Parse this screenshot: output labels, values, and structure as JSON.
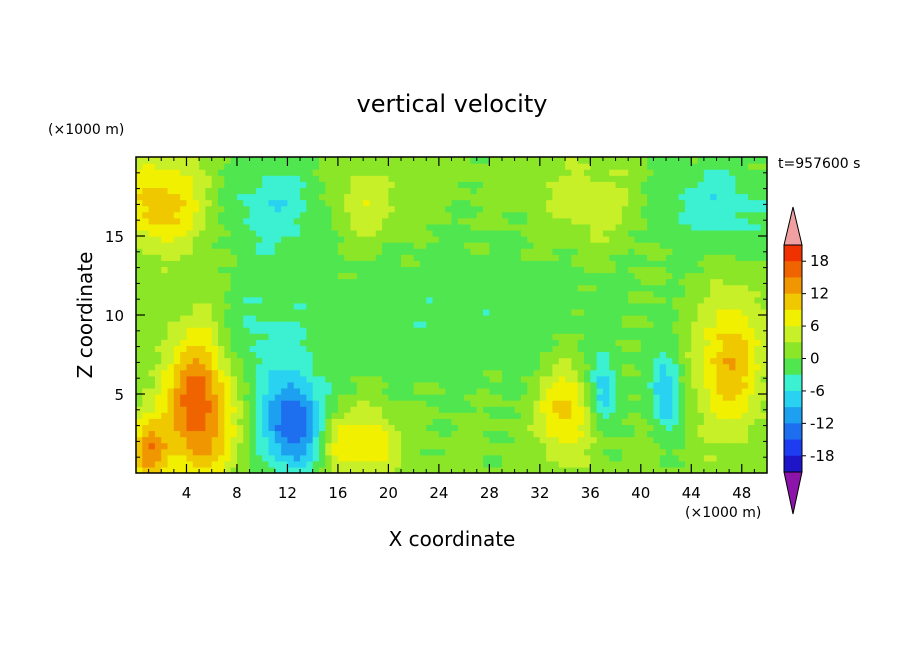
{
  "chart_data": {
    "type": "heatmap",
    "title": "vertical velocity",
    "xlabel": "X coordinate",
    "ylabel": "Z coordinate",
    "x_unit": "(×1000 m)",
    "y_unit": "(×1000 m)",
    "time_label": "t=957600 s",
    "xlim": [
      0,
      50
    ],
    "ylim": [
      0,
      20
    ],
    "x_ticks": [
      "4",
      "8",
      "12",
      "16",
      "20",
      "24",
      "28",
      "32",
      "36",
      "40",
      "44",
      "48"
    ],
    "y_ticks": [
      "5",
      "10",
      "15"
    ],
    "colorbar": {
      "labels": [
        "18",
        "12",
        "6",
        "0",
        "-6",
        "-12",
        "-18"
      ],
      "levels": [
        -21,
        -18,
        -15,
        -12,
        -9,
        -6,
        -3,
        0,
        3,
        6,
        9,
        12,
        15,
        18,
        21
      ],
      "colors": [
        "#2a0a8a",
        "#1e14c8",
        "#1e3cf0",
        "#1e6ef0",
        "#1ea0f0",
        "#28d2f0",
        "#3cf0d2",
        "#50e650",
        "#8ce628",
        "#c8f028",
        "#f0f000",
        "#f0c800",
        "#f09600",
        "#f06400",
        "#f03200",
        "#dc0000"
      ],
      "over_color": "#f0a0a0",
      "under_color": "#8c14aa"
    },
    "features": [
      {
        "x": 5,
        "z": 4.5,
        "value": 17,
        "sx": 2.0,
        "sz": 3.5
      },
      {
        "x": 1,
        "z": 1.5,
        "value": 12,
        "sx": 1.0,
        "sz": 1.5
      },
      {
        "x": 12.5,
        "z": 3,
        "value": -15,
        "sx": 1.8,
        "sz": 2.2
      },
      {
        "x": 16,
        "z": 2,
        "value": 8,
        "sx": 1.2,
        "sz": 1.5
      },
      {
        "x": 19,
        "z": 2,
        "value": 8,
        "sx": 1.2,
        "sz": 1.5
      },
      {
        "x": 34,
        "z": 4,
        "value": 10,
        "sx": 1.5,
        "sz": 2.0
      },
      {
        "x": 37,
        "z": 5,
        "value": -9,
        "sx": 0.8,
        "sz": 1.5
      },
      {
        "x": 42,
        "z": 5,
        "value": -10,
        "sx": 0.8,
        "sz": 1.8
      },
      {
        "x": 47,
        "z": 7,
        "value": 11,
        "sx": 1.8,
        "sz": 3.0
      },
      {
        "x": 2,
        "z": 17,
        "value": 10,
        "sx": 2.5,
        "sz": 2.0
      },
      {
        "x": 11,
        "z": 17,
        "value": -6,
        "sx": 3.0,
        "sz": 2.0
      },
      {
        "x": 18,
        "z": 17,
        "value": 5,
        "sx": 2.0,
        "sz": 1.8
      },
      {
        "x": 36,
        "z": 17,
        "value": 5,
        "sx": 2.5,
        "sz": 1.8
      },
      {
        "x": 46,
        "z": 17,
        "value": -6,
        "sx": 3.5,
        "sz": 2.0
      },
      {
        "x": 25,
        "z": 10,
        "value": -3,
        "sx": 12,
        "sz": 4
      },
      {
        "x": 9,
        "z": 8,
        "value": -4,
        "sx": 3.0,
        "sz": 3.0
      }
    ]
  }
}
